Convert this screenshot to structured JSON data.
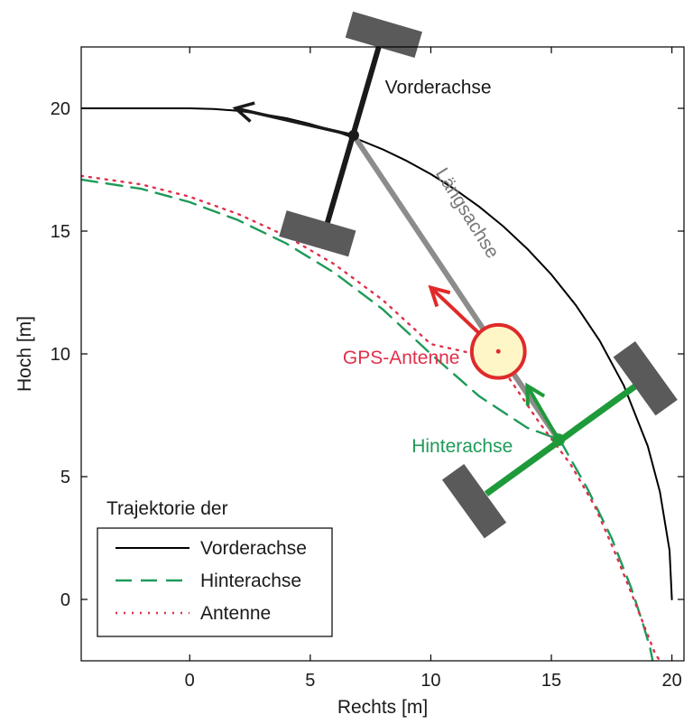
{
  "chart_data": {
    "type": "line",
    "xlabel": "Rechts [m]",
    "ylabel": "Hoch [m]",
    "xlim": [
      -4.5,
      20.5
    ],
    "ylim": [
      -2.5,
      22.5
    ],
    "xticks": [
      0,
      5,
      10,
      15,
      20
    ],
    "yticks": [
      0,
      5,
      10,
      15,
      20
    ],
    "grid": false,
    "legend": {
      "title": "Trajektorie der",
      "position": "bottom-left",
      "entries": [
        {
          "label": "Vorderachse",
          "style": "solid",
          "color": "#000000"
        },
        {
          "label": "Hinterachse",
          "style": "dashed",
          "color": "#1f9a5a"
        },
        {
          "label": "Antenne",
          "style": "dotted",
          "color": "#e0304a"
        }
      ]
    },
    "series": [
      {
        "name": "Vorderachse",
        "style": "solid",
        "color": "#000000",
        "x": [
          -4.5,
          0,
          1,
          2,
          3,
          4,
          5,
          6,
          7,
          8,
          9,
          10,
          11,
          12,
          13,
          14,
          15,
          16,
          17,
          18,
          19,
          19.5,
          19.9,
          20
        ],
        "y": [
          20,
          20,
          19.97,
          19.9,
          19.77,
          19.6,
          19.36,
          19.08,
          18.73,
          18.33,
          17.86,
          17.32,
          16.7,
          16.0,
          15.2,
          14.28,
          13.23,
          12.0,
          10.54,
          8.72,
          6.24,
          4.39,
          2.0,
          0.0
        ]
      },
      {
        "name": "Hinterachse",
        "style": "dashed",
        "color": "#1f9a5a",
        "x": [
          -4.5,
          -2,
          0,
          2,
          4,
          6,
          8,
          10,
          12,
          14,
          15.35,
          16.5,
          17.5,
          18.3,
          18.8,
          19.1,
          19.2
        ],
        "y": [
          17.1,
          16.72,
          16.18,
          15.45,
          14.5,
          13.3,
          11.82,
          10.0,
          8.28,
          6.99,
          6.5,
          4.5,
          2.5,
          0.5,
          -1.0,
          -2.0,
          -2.5
        ]
      },
      {
        "name": "Antenne",
        "style": "dotted",
        "color": "#e0304a",
        "x": [
          -4.5,
          -2,
          0,
          2,
          4,
          6,
          8,
          10,
          12.7,
          14.5,
          15.8,
          16.8,
          17.6,
          18.3,
          18.9,
          19.3,
          19.5
        ],
        "y": [
          17.25,
          16.9,
          16.4,
          15.7,
          14.8,
          13.65,
          12.2,
          10.4,
          9.8,
          7.2,
          5.5,
          3.8,
          2.0,
          0.3,
          -1.2,
          -2.2,
          -2.5
        ]
      }
    ],
    "vehicle": {
      "front_axle_center": [
        6.8,
        18.9
      ],
      "front_axle_ends": [
        [
          5.7,
          15.3
        ],
        [
          7.9,
          22.7
        ]
      ],
      "front_wheels": [
        [
          5.3,
          14.9
        ],
        [
          8.05,
          23.0
        ]
      ],
      "rear_axle_center": [
        15.3,
        6.5
      ],
      "rear_axle_ends": [
        [
          12.3,
          4.3
        ],
        [
          18.5,
          8.7
        ]
      ],
      "rear_wheels": [
        [
          11.8,
          4.0
        ],
        [
          18.9,
          9.0
        ]
      ],
      "antenna": [
        12.8,
        10.1
      ],
      "front_heading_arrow": [
        [
          6.8,
          18.9
        ],
        [
          1.9,
          20.0
        ]
      ],
      "antenna_heading_arrow": [
        [
          12.8,
          10.1
        ],
        [
          10.0,
          12.7
        ]
      ],
      "rear_heading_arrow": [
        [
          15.3,
          6.5
        ],
        [
          14.0,
          8.7
        ]
      ]
    },
    "annotations": [
      {
        "text": "Vorderachse",
        "color": "#1a1a1a",
        "at": [
          8.1,
          20.6
        ]
      },
      {
        "text": "Längsachse",
        "color": "#777777",
        "at": [
          11.3,
          15.6
        ],
        "rotate": 58
      },
      {
        "text": "GPS-Antenne",
        "color": "#e0304a",
        "at": [
          11.2,
          9.6
        ],
        "anchor": "end"
      },
      {
        "text": "Hinterachse",
        "color": "#1f9a5a",
        "at": [
          13.4,
          6.0
        ],
        "anchor": "end"
      }
    ]
  }
}
